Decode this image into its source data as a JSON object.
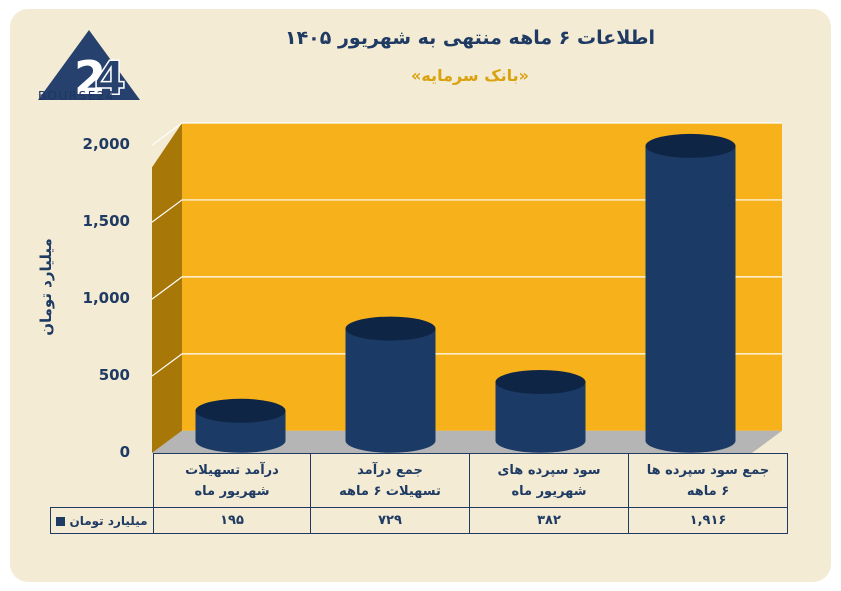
{
  "colors": {
    "bar": "#1b3a66",
    "bar_top": "#0f2545",
    "plot_bg": "#f6b11b",
    "wall_side": "#a77708",
    "floor": "#b5b5b5",
    "text": "#1f3a63",
    "subtitle": "#d9a20e",
    "card": "#f3ebd3"
  },
  "logo": {
    "text": "BOURSE24",
    "icon": "24-logo-icon"
  },
  "header": {
    "title": "اطلاعات ۶ ماهه منتهی به شهریور ۱۴۰۵",
    "subtitle": "«بانک سرمایه»"
  },
  "chart_data": {
    "type": "bar",
    "categories": [
      "درآمد تسهیلات شهریور ماه",
      "جمع درآمد تسهیلات ۶ ماهه",
      "سود سپرده های شهریور ماه",
      "جمع سود سپرده ها ۶ ماهه"
    ],
    "category_lines": [
      [
        "درآمد تسهیلات",
        "شهریور ماه"
      ],
      [
        "جمع درآمد",
        "تسهیلات ۶ ماهه"
      ],
      [
        "سود سپرده های",
        "شهریور ماه"
      ],
      [
        "جمع سود سپرده ها",
        "۶ ماهه"
      ]
    ],
    "series": [
      {
        "name": "میلیارد تومان",
        "values": [
          195,
          729,
          382,
          1916
        ]
      }
    ],
    "value_labels": [
      "۱۹۵",
      "۷۲۹",
      "۳۸۲",
      "۱,۹۱۶"
    ],
    "ylabel": "میلیارد تومان",
    "ylim": [
      0,
      2000
    ],
    "yticks": [
      0,
      500,
      1000,
      1500,
      2000
    ],
    "ytick_labels": [
      "0",
      "500",
      "1,000",
      "1,500",
      "2,000"
    ],
    "grid": true,
    "style": "3d-cylinder",
    "legend": "data-table"
  }
}
